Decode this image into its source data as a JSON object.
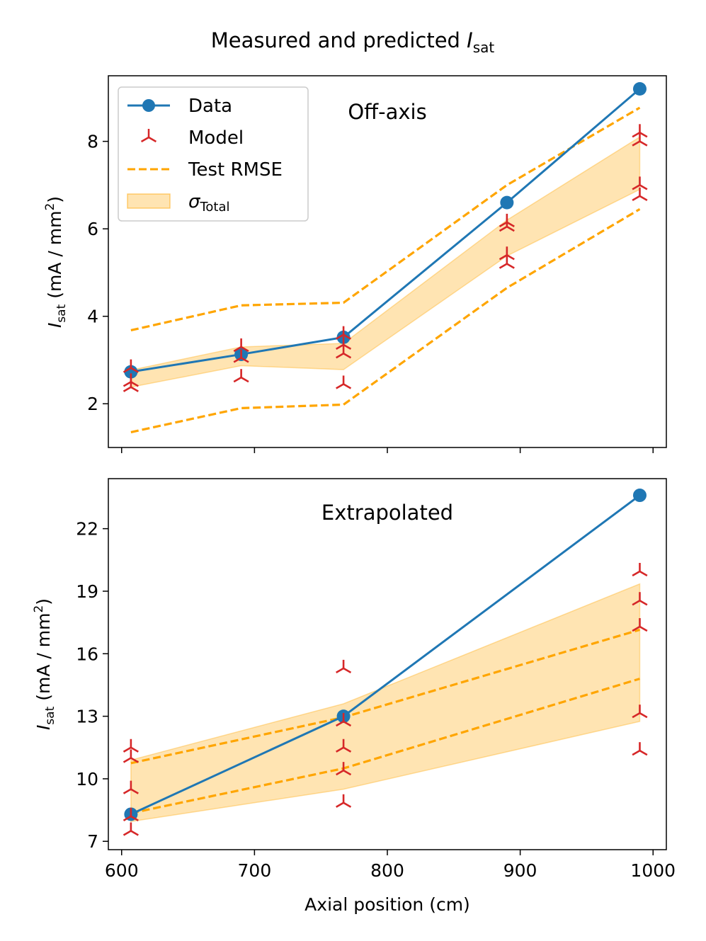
{
  "figure_title": "Measured and predicted ",
  "figure_title_symbol": "I",
  "figure_title_subscript": "sat",
  "colors": {
    "data": "#1f77b4",
    "model": "#d62728",
    "rmse": "#ffa500",
    "band": "#ffa500"
  },
  "legend": {
    "data_label": "Data",
    "model_label": "Model",
    "rmse_label": "Test RMSE",
    "band_label_symbol": "σ",
    "band_label_subscript": "Total"
  },
  "chart_data": [
    {
      "type": "line",
      "title": "Off-axis",
      "xlabel": "",
      "ylabel": "I_sat (mA / mm2)",
      "ylabel_symbol": "I",
      "ylabel_subscript": "sat",
      "ylabel_units": " (mA / mm",
      "ylabel_sup": "2",
      "ylabel_close": ")",
      "xlim": [
        590,
        1010
      ],
      "ylim": [
        1.0,
        9.5
      ],
      "yticks": [
        2,
        4,
        6,
        8
      ],
      "yticklabels": [
        "2",
        "4",
        "6",
        "8"
      ],
      "xticks": [
        600,
        700,
        800,
        900,
        1000
      ],
      "show_xticklabels": false,
      "legend_position": "upper-left",
      "series": [
        {
          "name": "Data",
          "kind": "line-marker",
          "x": [
            607,
            690,
            767,
            890,
            990
          ],
          "y": [
            2.73,
            3.13,
            3.52,
            6.6,
            9.2
          ]
        },
        {
          "name": "Test RMSE upper",
          "kind": "dashed",
          "x": [
            607,
            690,
            767,
            890,
            990
          ],
          "y": [
            3.68,
            4.25,
            4.31,
            7.0,
            8.77
          ]
        },
        {
          "name": "Test RMSE lower",
          "kind": "dashed",
          "x": [
            607,
            690,
            767,
            890,
            990
          ],
          "y": [
            1.35,
            1.9,
            1.98,
            4.65,
            6.45
          ]
        },
        {
          "name": "σ Total band",
          "kind": "band",
          "x": [
            607,
            690,
            767,
            890,
            990
          ],
          "upper": [
            2.77,
            3.3,
            3.38,
            6.2,
            8.1
          ],
          "lower": [
            2.38,
            2.87,
            2.78,
            5.38,
            6.9
          ]
        },
        {
          "name": "Model",
          "kind": "tri-markers",
          "x": [
            607,
            607,
            607,
            690,
            690,
            690,
            767,
            767,
            767,
            767,
            890,
            890,
            890,
            890,
            990,
            990,
            990,
            990
          ],
          "y": [
            2.38,
            2.5,
            2.82,
            2.6,
            3.05,
            3.3,
            2.45,
            3.15,
            3.35,
            3.58,
            5.2,
            5.4,
            6.05,
            6.15,
            6.75,
            7.0,
            8.0,
            8.2
          ]
        }
      ]
    },
    {
      "type": "line",
      "title": "Extrapolated",
      "xlabel": "Axial position (cm)",
      "ylabel": "I_sat (mA / mm2)",
      "ylabel_symbol": "I",
      "ylabel_subscript": "sat",
      "ylabel_units": " (mA / mm",
      "ylabel_sup": "2",
      "ylabel_close": ")",
      "xlim": [
        590,
        1010
      ],
      "ylim": [
        6.6,
        24.4
      ],
      "yticks": [
        7,
        10,
        13,
        16,
        19,
        22
      ],
      "yticklabels": [
        "7",
        "10",
        "13",
        "16",
        "19",
        "22"
      ],
      "xticks": [
        600,
        700,
        800,
        900,
        1000
      ],
      "xticklabels": [
        "600",
        "700",
        "800",
        "900",
        "1000"
      ],
      "show_xticklabels": true,
      "series": [
        {
          "name": "Data",
          "kind": "line-marker",
          "x": [
            607,
            767,
            990
          ],
          "y": [
            8.3,
            13.0,
            23.6
          ]
        },
        {
          "name": "Test RMSE upper",
          "kind": "dashed",
          "x": [
            607,
            767,
            990
          ],
          "y": [
            10.75,
            12.95,
            17.15
          ]
        },
        {
          "name": "Test RMSE lower",
          "kind": "dashed",
          "x": [
            607,
            767,
            990
          ],
          "y": [
            8.35,
            10.5,
            14.8
          ]
        },
        {
          "name": "σ Total band",
          "kind": "band",
          "x": [
            607,
            767,
            990
          ],
          "upper": [
            10.9,
            13.6,
            19.35
          ],
          "lower": [
            7.95,
            9.5,
            12.75
          ]
        },
        {
          "name": "Model",
          "kind": "tri-markers",
          "x": [
            607,
            607,
            607,
            607,
            607,
            767,
            767,
            767,
            767,
            767,
            990,
            990,
            990,
            990,
            990
          ],
          "y": [
            7.5,
            8.2,
            9.5,
            11.0,
            11.5,
            8.85,
            10.4,
            11.5,
            12.75,
            15.3,
            11.35,
            13.15,
            17.3,
            18.55,
            19.95
          ]
        }
      ]
    }
  ]
}
